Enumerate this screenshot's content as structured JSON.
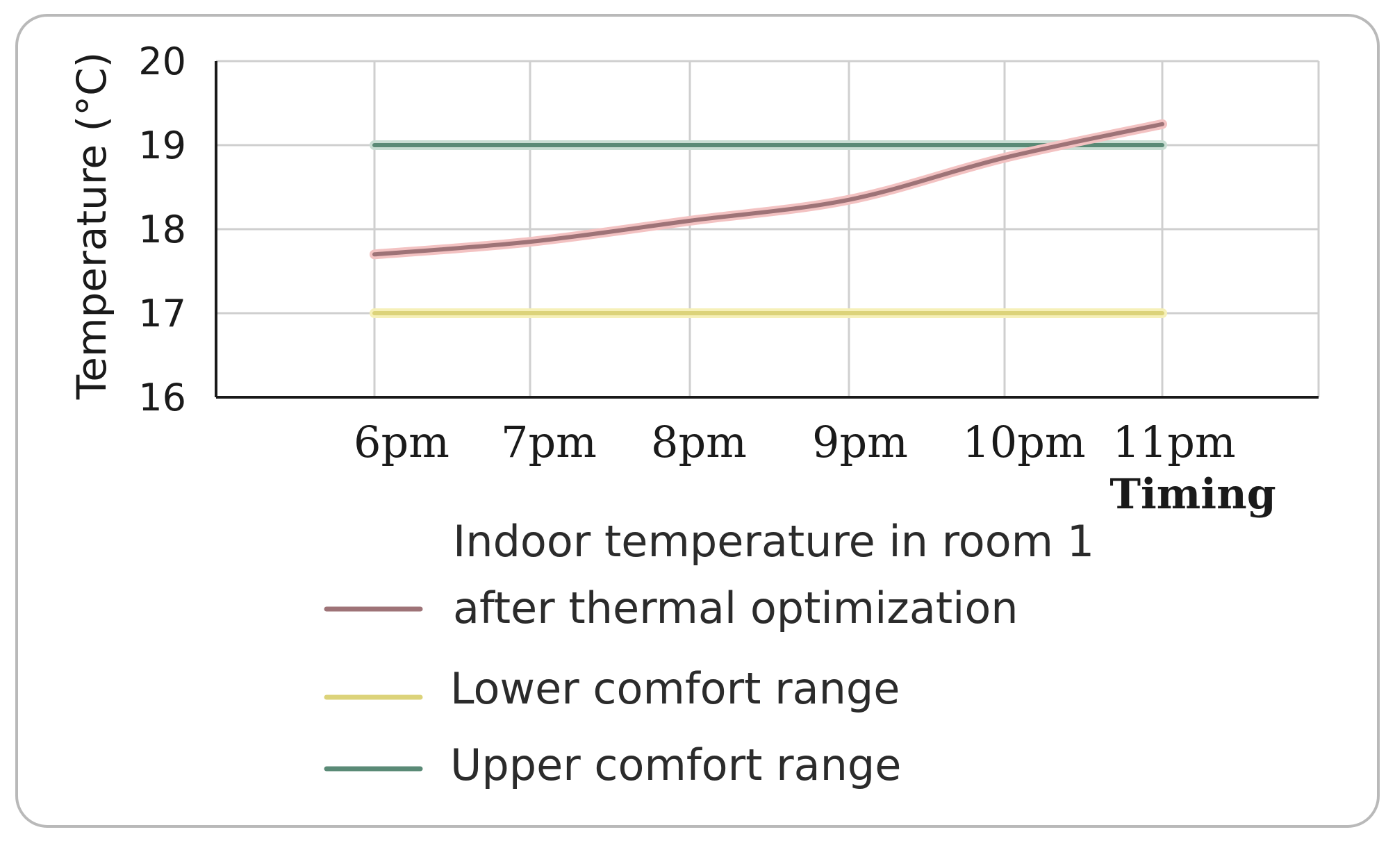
{
  "chart_data": {
    "type": "line",
    "title": "",
    "xlabel": "Timing",
    "ylabel": "Temperature (°C)",
    "categories": [
      "6pm",
      "7pm",
      "8pm",
      "9pm",
      "10pm",
      "11pm"
    ],
    "ylim": [
      16,
      20
    ],
    "y_ticks": [
      "16",
      "17",
      "18",
      "19",
      "20"
    ],
    "grid": true,
    "legend_position": "below",
    "series": [
      {
        "name_lines": [
          "Indoor temperature in room 1",
          "after thermal optimization"
        ],
        "values": [
          17.7,
          17.85,
          18.1,
          18.35,
          18.85,
          19.25
        ],
        "color": "#9e7377",
        "glow": "#f3c2c2"
      },
      {
        "name": "Lower comfort range",
        "values": [
          17,
          17,
          17,
          17,
          17,
          17
        ],
        "color": "#dcd37a",
        "glow": "#f6f0b8"
      },
      {
        "name": "Upper comfort range",
        "values": [
          19,
          19,
          19,
          19,
          19,
          19
        ],
        "color": "#5a8a76",
        "glow": "#c9ddd3"
      }
    ]
  }
}
